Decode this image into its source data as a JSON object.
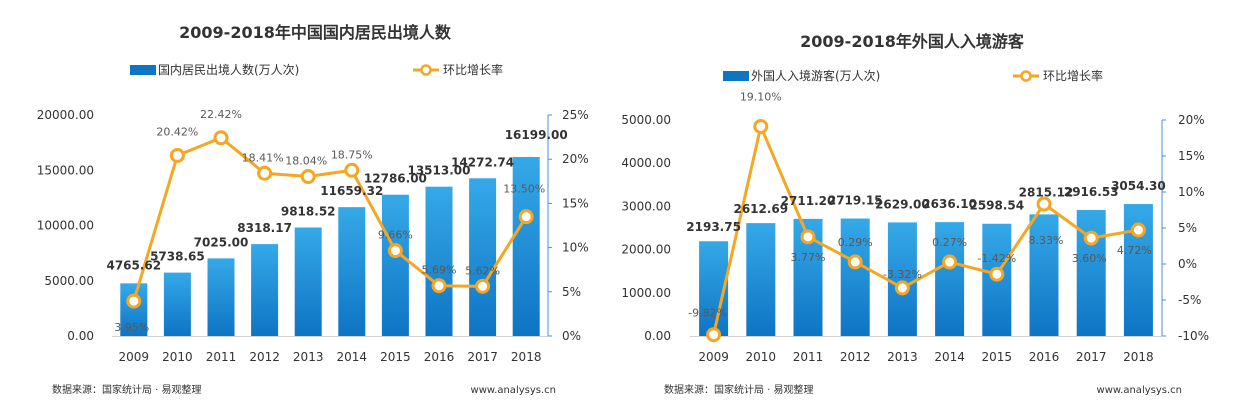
{
  "colors": {
    "bar_top": "#35a9e8",
    "bar_bottom": "#0e74c4",
    "line": "#f5a623",
    "axis": "#4a90d9"
  },
  "chart_data": [
    {
      "type": "bar",
      "title": "2009-2018年中国国内居民出境人数",
      "categories": [
        "2009",
        "2010",
        "2011",
        "2012",
        "2013",
        "2014",
        "2015",
        "2016",
        "2017",
        "2018"
      ],
      "series": [
        {
          "name": "国内居民出境人数(万人次)",
          "type": "bar",
          "values": [
            4765.62,
            5738.65,
            7025.0,
            8318.17,
            9818.52,
            11659.32,
            12786.0,
            13513.0,
            14272.74,
            16199.0
          ],
          "labels": [
            "4765.62",
            "5738.65",
            "7025.00",
            "8318.17",
            "9818.52",
            "11659.32",
            "12786.00",
            "13513.00",
            "14272.74",
            "16199.00"
          ]
        },
        {
          "name": "环比增长率",
          "type": "line",
          "axis": "right",
          "values": [
            3.95,
            20.42,
            22.42,
            18.41,
            18.04,
            18.75,
            9.66,
            5.69,
            5.62,
            13.5
          ],
          "labels": [
            "3.95%",
            "20.42%",
            "22.42%",
            "18.41%",
            "18.04%",
            "18.75%",
            "9.66%",
            "5.69%",
            "5.62%",
            "13.50%"
          ]
        }
      ],
      "ylim": [
        0,
        20000
      ],
      "y_ticks": [
        "0.00",
        "5000.00",
        "10000.00",
        "15000.00",
        "20000.00"
      ],
      "y2lim": [
        0,
        25
      ],
      "y2_ticks": [
        "0%",
        "5%",
        "10%",
        "15%",
        "20%",
        "25%"
      ],
      "legend_position": "top",
      "grid": false,
      "source": "数据来源：国家统计局 · 易观整理",
      "website": "www.analysys.cn"
    },
    {
      "type": "bar",
      "title": "2009-2018年外国人入境游客",
      "categories": [
        "2009",
        "2010",
        "2011",
        "2012",
        "2013",
        "2014",
        "2015",
        "2016",
        "2017",
        "2018"
      ],
      "series": [
        {
          "name": "外国人入境游客(万人次)",
          "type": "bar",
          "values": [
            2193.75,
            2612.69,
            2711.2,
            2719.15,
            2629.0,
            2636.1,
            2598.54,
            2815.12,
            2916.53,
            3054.3
          ],
          "labels": [
            "2193.75",
            "2612.69",
            "2711.20",
            "2719.15",
            "2629.00",
            "2636.10",
            "2598.54",
            "2815.12",
            "2916.53",
            "3054.30"
          ]
        },
        {
          "name": "环比增长率",
          "type": "line",
          "axis": "right",
          "values": [
            -9.82,
            19.1,
            3.77,
            0.29,
            -3.32,
            0.27,
            -1.42,
            8.33,
            3.6,
            4.72
          ],
          "labels": [
            "-9.82%",
            "19.10%",
            "3.77%",
            "0.29%",
            "-3.32%",
            "0.27%",
            "-1.42%",
            "8.33%",
            "3.60%",
            "4.72%"
          ]
        }
      ],
      "ylim": [
        0,
        5000
      ],
      "y_ticks": [
        "0.00",
        "1000.00",
        "2000.00",
        "3000.00",
        "4000.00",
        "5000.00"
      ],
      "y2lim": [
        -10,
        20
      ],
      "y2_ticks": [
        "-10%",
        "-5%",
        "0%",
        "5%",
        "10%",
        "15%",
        "20%"
      ],
      "legend_position": "top",
      "grid": false,
      "source": "数据来源：国家统计局 · 易观整理",
      "website": "www.analysys.cn"
    }
  ]
}
